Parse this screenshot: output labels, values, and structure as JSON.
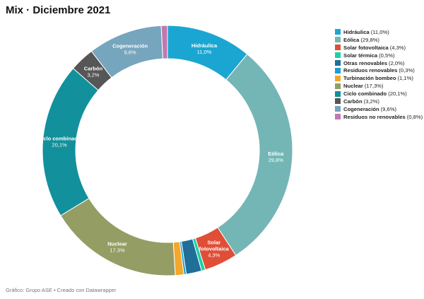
{
  "title": "Mix · Diciembre 2021",
  "footer": "Gráfico: Grupo ASE • Creado con Datawrapper",
  "chart_data": {
    "type": "pie",
    "donut": true,
    "legend_position": "right",
    "slices": [
      {
        "name": "Hidráulica",
        "value": 11.0,
        "value_label": "11,0%",
        "legend_text": "(11,0%)",
        "color": "#1ba6d2",
        "label_lines": [
          "Hidráulica"
        ],
        "show_label": true
      },
      {
        "name": "Eólica",
        "value": 29.8,
        "value_label": "29,8%",
        "legend_text": "(29,8%)",
        "color": "#73b6b5",
        "label_lines": [
          "Eólica"
        ],
        "show_label": true
      },
      {
        "name": "Solar fotovoltaica",
        "value": 4.3,
        "value_label": "4,3%",
        "legend_text": "(4,3%)",
        "color": "#e04e37",
        "label_lines": [
          "Solar",
          "fotovoltaica"
        ],
        "show_label": true
      },
      {
        "name": "Solar térmica",
        "value": 0.5,
        "value_label": "0,5%",
        "legend_text": "(0,5%)",
        "color": "#19d3a7",
        "label_lines": [
          "Solar térmica"
        ],
        "show_label": false
      },
      {
        "name": "Otras renovables",
        "value": 2.0,
        "value_label": "2,0%",
        "legend_text": "(2,0%)",
        "color": "#1f6f98",
        "label_lines": [
          "Otras renovables"
        ],
        "show_label": false
      },
      {
        "name": "Residuos renovables",
        "value": 0.3,
        "value_label": "0,3%",
        "legend_text": "(0,3%)",
        "color": "#1aa0d4",
        "label_lines": [
          "Residuos renovables"
        ],
        "show_label": false
      },
      {
        "name": "Turbinación bombeo",
        "value": 1.1,
        "value_label": "1,1%",
        "legend_text": "(1,1%)",
        "color": "#f4a72a",
        "label_lines": [
          "Turbinación bombeo"
        ],
        "show_label": false
      },
      {
        "name": "Nuclear",
        "value": 17.3,
        "value_label": "17,3%",
        "legend_text": "(17,3%)",
        "color": "#949d64",
        "label_lines": [
          "Nuclear"
        ],
        "show_label": true
      },
      {
        "name": "Ciclo combinado",
        "value": 20.1,
        "value_label": "20,1%",
        "legend_text": "(20,1%)",
        "color": "#12909c",
        "label_lines": [
          "Ciclo combinado"
        ],
        "show_label": true
      },
      {
        "name": "Carbón",
        "value": 3.2,
        "value_label": "3,2%",
        "legend_text": "(3,2%)",
        "color": "#565656",
        "label_lines": [
          "Carbón"
        ],
        "show_label": true
      },
      {
        "name": "Cogeneración",
        "value": 9.6,
        "value_label": "9,6%",
        "legend_text": "(9,6%)",
        "color": "#76a5be",
        "label_lines": [
          "Cogeneración"
        ],
        "show_label": true
      },
      {
        "name": "Residuos no renovables",
        "value": 0.8,
        "value_label": "0,8%",
        "legend_text": "(0,8%)",
        "color": "#c278b0",
        "label_lines": [
          "Residuos no renovables"
        ],
        "show_label": false
      }
    ]
  }
}
